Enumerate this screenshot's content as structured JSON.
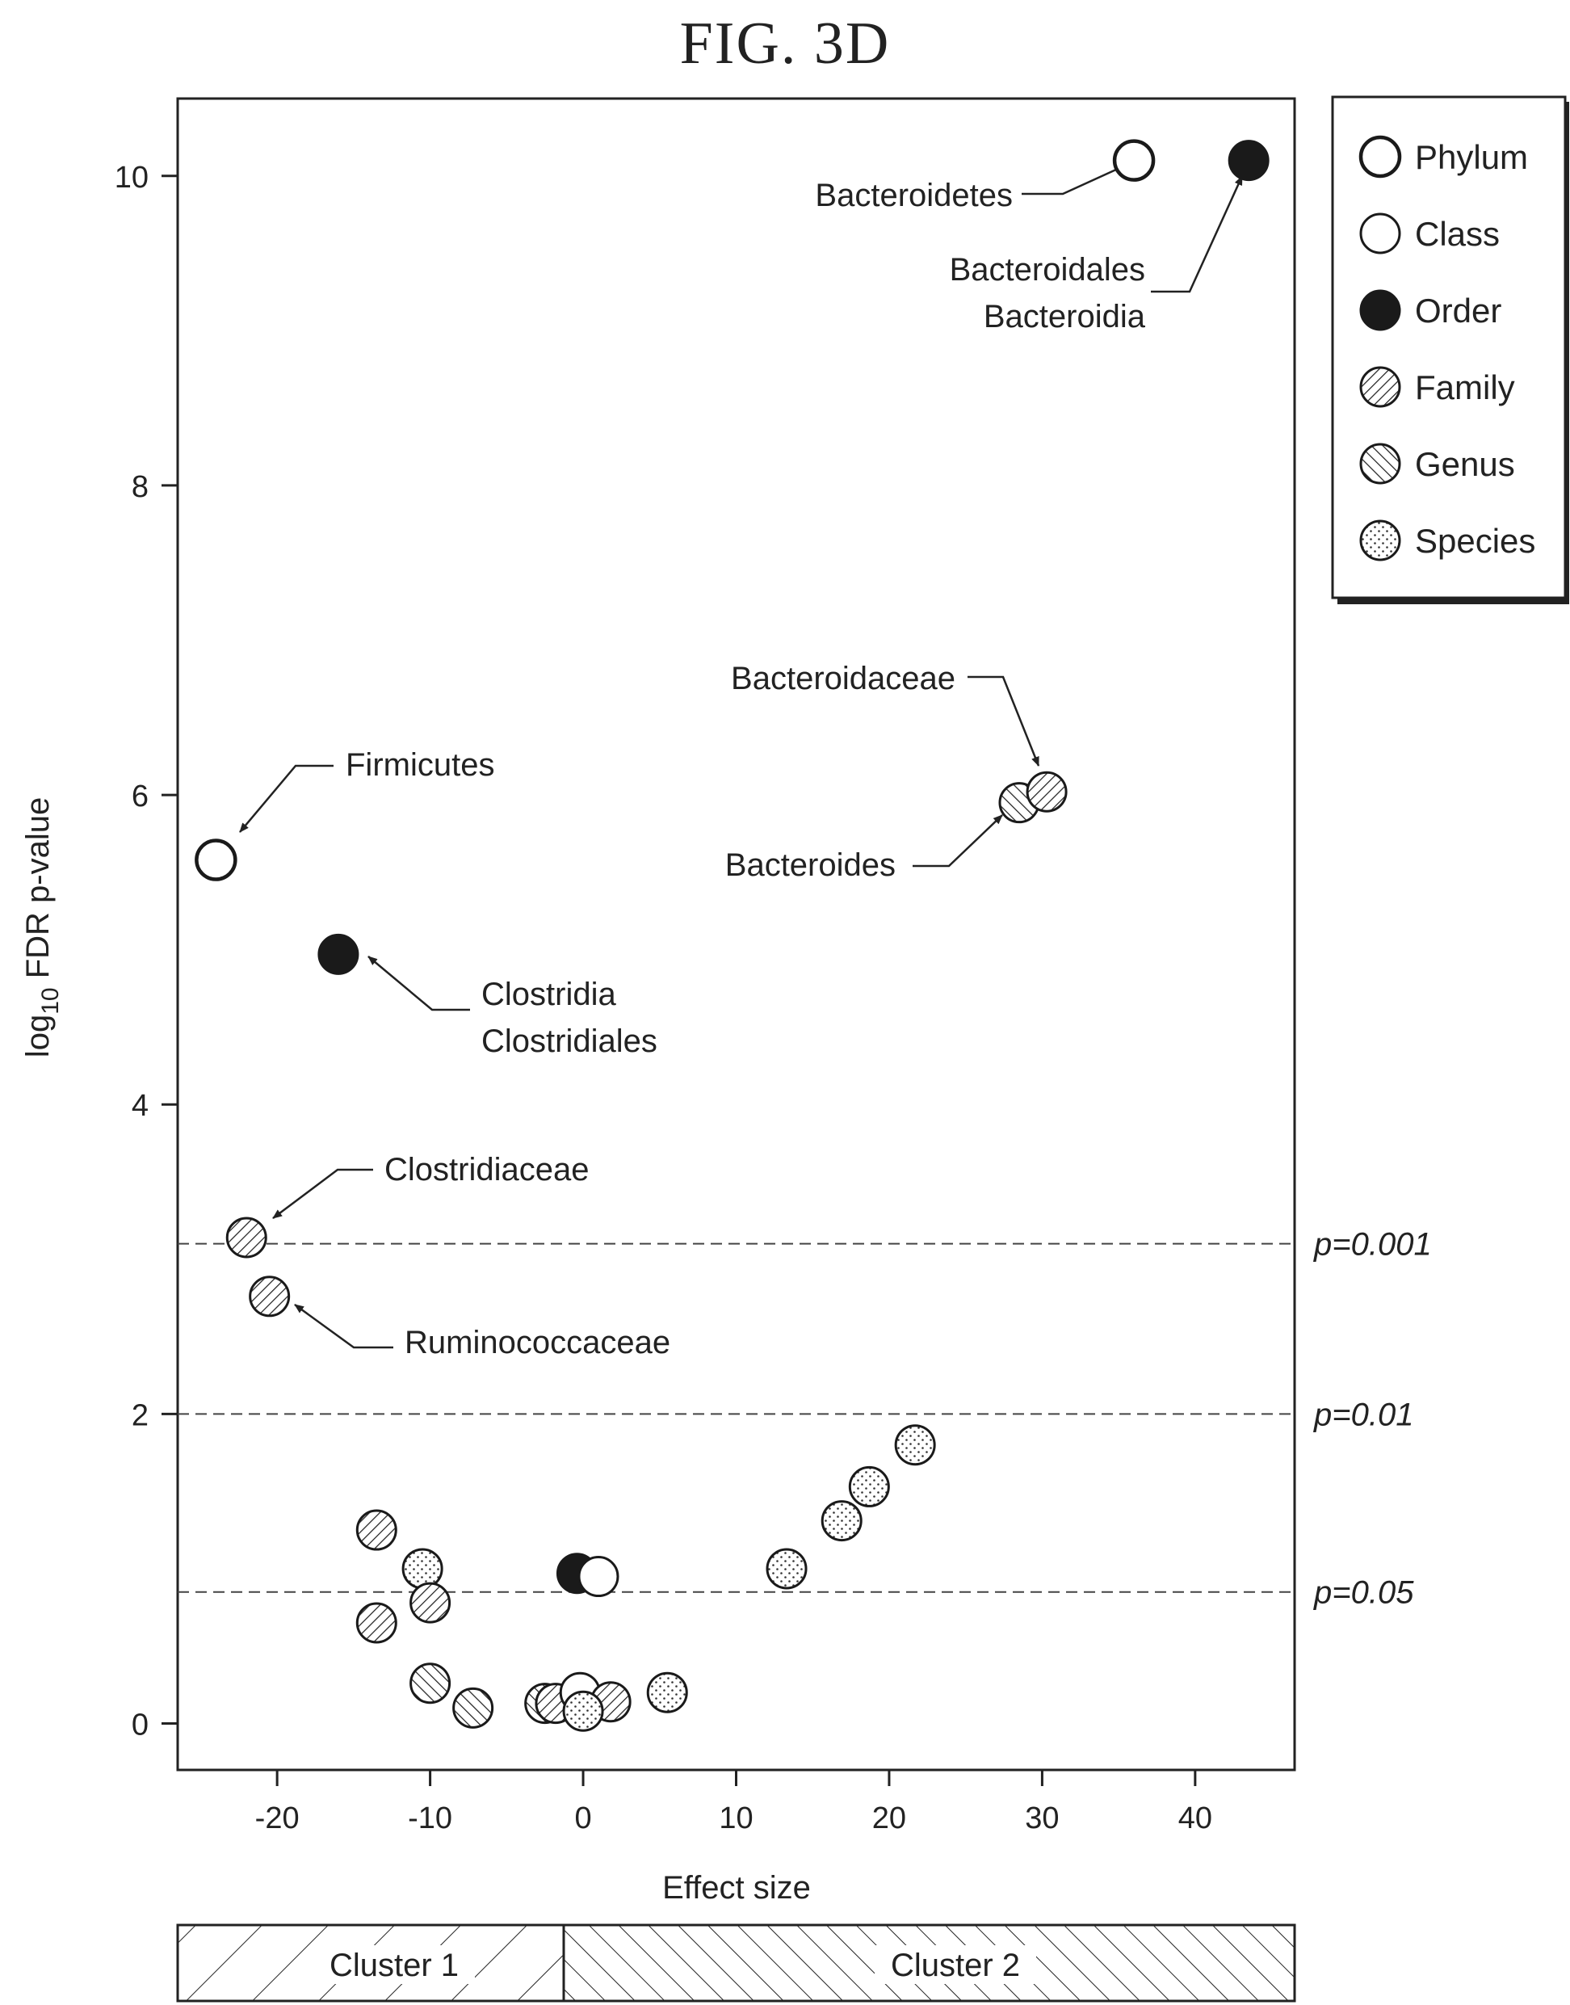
{
  "figure_title": "FIG. 3D",
  "chart_data": {
    "type": "scatter",
    "title": "",
    "xlabel": "Effect size",
    "ylabel_main": "log",
    "ylabel_sub": "10",
    "ylabel_rest": " FDR p-value",
    "xlim": [
      -26.5,
      46.5
    ],
    "ylim": [
      -0.3,
      10.5
    ],
    "xticks": [
      -20,
      -10,
      0,
      10,
      20,
      30,
      40
    ],
    "yticks": [
      0,
      2,
      4,
      6,
      8,
      10
    ],
    "grid": false,
    "legend_position": "right",
    "legend": [
      {
        "rank": "phylum",
        "label": "Phylum"
      },
      {
        "rank": "class",
        "label": "Class"
      },
      {
        "rank": "order",
        "label": "Order"
      },
      {
        "rank": "family",
        "label": "Family"
      },
      {
        "rank": "genus",
        "label": "Genus"
      },
      {
        "rank": "species",
        "label": "Species"
      }
    ],
    "thresholds": [
      {
        "y": 3.1,
        "label": "p=0.001"
      },
      {
        "y": 2.0,
        "label": "p=0.01"
      },
      {
        "y": 0.85,
        "label": "p=0.05"
      }
    ],
    "points": [
      {
        "x": -13.5,
        "y": 1.25,
        "rank": "family"
      },
      {
        "x": -10.5,
        "y": 1.0,
        "rank": "species"
      },
      {
        "x": -10.0,
        "y": 0.78,
        "rank": "family"
      },
      {
        "x": -13.5,
        "y": 0.65,
        "rank": "family"
      },
      {
        "x": -10.0,
        "y": 0.26,
        "rank": "genus"
      },
      {
        "x": -7.2,
        "y": 0.1,
        "rank": "genus"
      },
      {
        "x": -2.5,
        "y": 0.13,
        "rank": "genus"
      },
      {
        "x": -1.8,
        "y": 0.13,
        "rank": "family"
      },
      {
        "x": -0.2,
        "y": 0.2,
        "rank": "class"
      },
      {
        "x": 1.8,
        "y": 0.14,
        "rank": "family"
      },
      {
        "x": 0.0,
        "y": 0.08,
        "rank": "species"
      },
      {
        "x": 5.5,
        "y": 0.2,
        "rank": "species"
      },
      {
        "x": -0.4,
        "y": 0.97,
        "rank": "order"
      },
      {
        "x": 1.0,
        "y": 0.95,
        "rank": "class"
      },
      {
        "x": 13.3,
        "y": 1.0,
        "rank": "species"
      },
      {
        "x": 16.9,
        "y": 1.31,
        "rank": "species"
      },
      {
        "x": 18.7,
        "y": 1.53,
        "rank": "species"
      },
      {
        "x": 21.7,
        "y": 1.8,
        "rank": "species"
      },
      {
        "x": -24.0,
        "y": 5.58,
        "rank": "phylum"
      },
      {
        "x": -16.0,
        "y": 4.97,
        "rank": "order"
      },
      {
        "x": -22.0,
        "y": 3.14,
        "rank": "family"
      },
      {
        "x": -20.5,
        "y": 2.76,
        "rank": "family"
      },
      {
        "x": 28.5,
        "y": 5.95,
        "rank": "genus"
      },
      {
        "x": 30.3,
        "y": 6.02,
        "rank": "family"
      },
      {
        "x": 36.0,
        "y": 10.1,
        "rank": "phylum"
      },
      {
        "x": 43.5,
        "y": 10.1,
        "rank": "order"
      }
    ],
    "annotations": [
      {
        "lines": [
          "Bacteroidetes"
        ],
        "anchor": "end"
      },
      {
        "lines": [
          "Bacteroidales",
          "Bacteroidia"
        ],
        "anchor": "end"
      },
      {
        "lines": [
          "Bacteroidaceae"
        ],
        "anchor": "end"
      },
      {
        "lines": [
          "Bacteroides"
        ],
        "anchor": "end"
      },
      {
        "lines": [
          "Firmicutes"
        ],
        "anchor": "start"
      },
      {
        "lines": [
          "Clostridia",
          "Clostridiales"
        ],
        "anchor": "start"
      },
      {
        "lines": [
          "Clostridiaceae"
        ],
        "anchor": "start"
      },
      {
        "lines": [
          "Ruminococcaceae"
        ],
        "anchor": "start"
      }
    ],
    "clusters": [
      {
        "label": "Cluster 1"
      },
      {
        "label": "Cluster 2"
      }
    ]
  }
}
